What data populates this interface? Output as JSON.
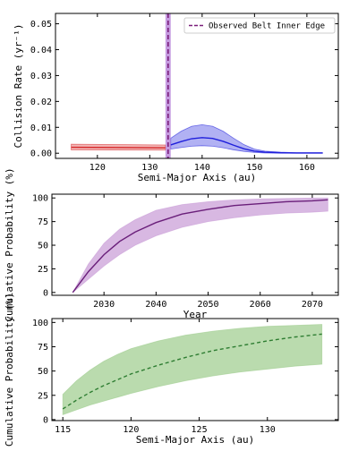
{
  "chart_data": [
    {
      "type": "line",
      "panel": "top",
      "xlabel": "Semi-Major Axis (au)",
      "ylabel": "Collision Rate (yr⁻¹)",
      "xlim": [
        112,
        166
      ],
      "ylim": [
        -0.002,
        0.054
      ],
      "xticks": [
        120,
        130,
        140,
        150,
        160
      ],
      "yticks": [
        0.0,
        0.01,
        0.02,
        0.03,
        0.04,
        0.05
      ],
      "ytick_labels": [
        "0.00",
        "0.01",
        "0.02",
        "0.03",
        "0.04",
        "0.05"
      ],
      "legend": {
        "position": "top-right",
        "entries": [
          "Observed Belt Inner Edge"
        ]
      },
      "colors": {
        "red": "#d62728",
        "blue": "#1f1fdc",
        "purple": "#7a1e7a",
        "vline_band": "#b27ad6"
      },
      "vline": {
        "x": 133.5,
        "band": [
          133.0,
          134.0
        ]
      },
      "series": [
        {
          "color": "red",
          "x": [
            115,
            133
          ],
          "y": [
            0.0023,
            0.0021
          ],
          "lower": [
            0.0013,
            0.0012
          ],
          "upper": [
            0.0035,
            0.0032
          ]
        },
        {
          "color": "blue",
          "x": [
            134,
            136,
            138,
            140,
            142,
            144,
            146,
            148,
            150,
            152,
            155,
            158,
            160,
            163
          ],
          "y": [
            0.0032,
            0.0045,
            0.0056,
            0.006,
            0.0057,
            0.0046,
            0.0031,
            0.0017,
            0.0008,
            0.0004,
            0.0002,
            0.0001,
            0.0001,
            0.0001
          ],
          "lower": [
            0.0016,
            0.0022,
            0.0027,
            0.0029,
            0.0027,
            0.0021,
            0.0013,
            0.0007,
            0.0003,
            0.0001,
            0.0,
            0.0,
            0.0,
            0.0
          ],
          "upper": [
            0.0058,
            0.0085,
            0.0104,
            0.011,
            0.0104,
            0.0085,
            0.0058,
            0.0033,
            0.0016,
            0.0008,
            0.0004,
            0.0002,
            0.0002,
            0.0002
          ]
        }
      ]
    },
    {
      "type": "area",
      "panel": "middle",
      "xlabel": "Year",
      "ylabel": "Cumulative Probability (%)",
      "xlim": [
        2020,
        2075
      ],
      "ylim": [
        -3,
        104
      ],
      "xticks": [
        2030,
        2040,
        2050,
        2060,
        2070
      ],
      "yticks": [
        0,
        25,
        50,
        75,
        100
      ],
      "colors": {
        "line": "#6a1f7a",
        "band": "#c89ad6"
      },
      "series": [
        {
          "x": [
            2024,
            2027,
            2030,
            2033,
            2036,
            2040,
            2045,
            2050,
            2055,
            2060,
            2065,
            2070,
            2073
          ],
          "y": [
            0,
            22,
            40,
            54,
            64,
            74,
            83,
            88,
            92,
            94,
            96,
            97,
            98
          ],
          "lower": [
            0,
            14,
            28,
            40,
            50,
            60,
            69,
            75,
            79,
            82,
            84,
            85,
            86
          ],
          "upper": [
            0,
            30,
            52,
            67,
            77,
            87,
            93,
            96,
            98,
            99,
            99.5,
            100,
            100
          ]
        }
      ]
    },
    {
      "type": "area",
      "panel": "bottom",
      "xlabel": "Semi-Major Axis (au)",
      "ylabel": "Cumulative Probability (%)",
      "xlim": [
        114.2,
        135.2
      ],
      "ylim": [
        -1,
        104
      ],
      "xticks": [
        115,
        120,
        125,
        130
      ],
      "yticks": [
        0,
        25,
        50,
        75,
        100
      ],
      "colors": {
        "line": "#2e7d32",
        "band": "#9ccc8c"
      },
      "series": [
        {
          "x": [
            115,
            116,
            117,
            118,
            119,
            120,
            122,
            124,
            126,
            128,
            130,
            132,
            134
          ],
          "y": [
            11,
            20,
            28,
            35,
            41,
            47,
            56,
            64,
            71,
            76,
            81,
            85,
            88
          ],
          "lower": [
            5,
            10,
            15,
            19,
            23,
            27,
            34,
            40,
            45,
            49,
            52,
            55,
            57
          ],
          "upper": [
            26,
            40,
            51,
            60,
            67,
            73,
            81,
            87,
            91,
            94,
            96,
            97,
            98
          ]
        }
      ]
    }
  ]
}
